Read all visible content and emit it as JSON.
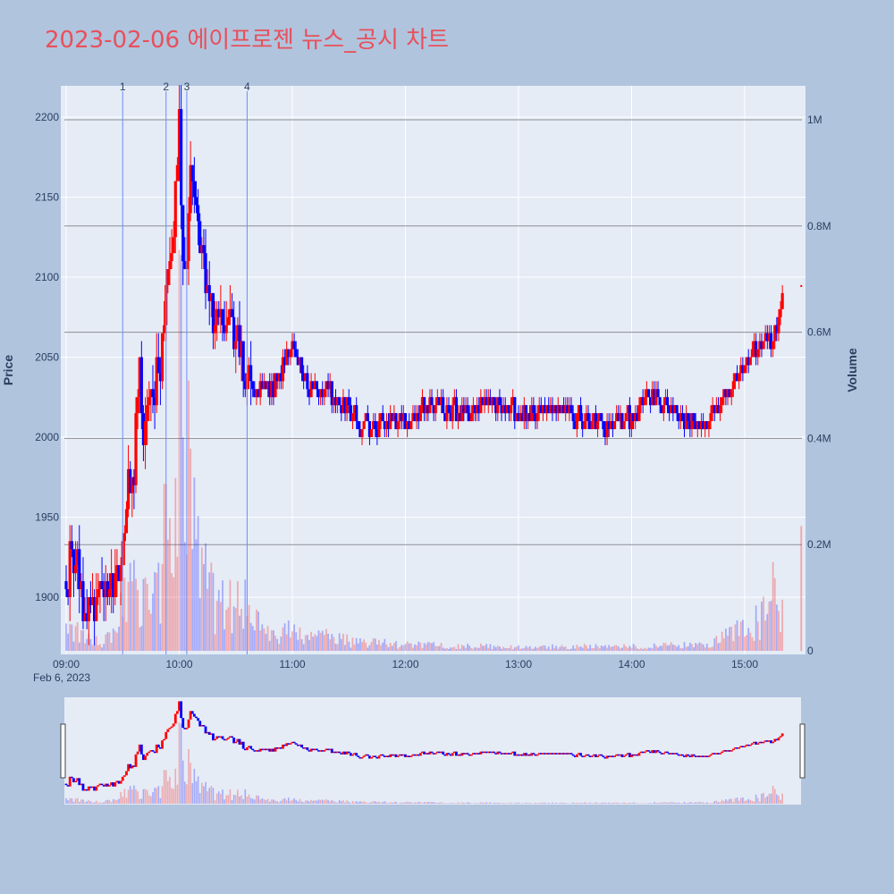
{
  "title": "2023-02-06 에이프로젠 뉴스_공시 차트",
  "chart_data": {
    "type": "candlestick",
    "ylabel": "Price",
    "y2label": "Volume",
    "xlabel": "",
    "date_label": "Feb 6, 2023",
    "x_ticks": [
      "09:00",
      "10:00",
      "11:00",
      "12:00",
      "13:00",
      "14:00",
      "15:00"
    ],
    "y_ticks": [
      1900,
      1950,
      2000,
      2050,
      2100,
      2150,
      2200
    ],
    "y2_ticks": [
      "0",
      "0.2M",
      "0.4M",
      "0.6M",
      "0.8M",
      "1M"
    ],
    "price_range": [
      1866,
      2220
    ],
    "volume_range": [
      0,
      1060000
    ],
    "time_range": [
      "09:00",
      "15:30"
    ],
    "up_color": "#ff0000",
    "down_color": "#0000ff",
    "news_markers": [
      {
        "label": "1",
        "time": "09:30"
      },
      {
        "label": "2",
        "time": "09:53"
      },
      {
        "label": "3",
        "time": "10:04"
      },
      {
        "label": "4",
        "time": "10:36"
      }
    ],
    "close_path": [
      [
        "09:00",
        1910
      ],
      [
        "09:04",
        1930
      ],
      [
        "09:08",
        1905
      ],
      [
        "09:10",
        1888
      ],
      [
        "09:15",
        1897
      ],
      [
        "09:20",
        1902
      ],
      [
        "09:25",
        1906
      ],
      [
        "09:30",
        1930
      ],
      [
        "09:33",
        1965
      ],
      [
        "09:36",
        1985
      ],
      [
        "09:39",
        2045
      ],
      [
        "09:41",
        2000
      ],
      [
        "09:44",
        2015
      ],
      [
        "09:47",
        2035
      ],
      [
        "09:50",
        2050
      ],
      [
        "09:53",
        2090
      ],
      [
        "09:56",
        2120
      ],
      [
        "09:58",
        2150
      ],
      [
        "10:00",
        2190
      ],
      [
        "10:02",
        2110
      ],
      [
        "10:04",
        2100
      ],
      [
        "10:06",
        2160
      ],
      [
        "10:08",
        2140
      ],
      [
        "10:11",
        2120
      ],
      [
        "10:14",
        2090
      ],
      [
        "10:17",
        2070
      ],
      [
        "10:20",
        2075
      ],
      [
        "10:24",
        2065
      ],
      [
        "10:28",
        2070
      ],
      [
        "10:32",
        2055
      ],
      [
        "10:36",
        2040
      ],
      [
        "10:40",
        2030
      ],
      [
        "10:45",
        2032
      ],
      [
        "10:50",
        2030
      ],
      [
        "10:55",
        2045
      ],
      [
        "11:00",
        2055
      ],
      [
        "11:05",
        2040
      ],
      [
        "11:10",
        2030
      ],
      [
        "11:20",
        2025
      ],
      [
        "11:30",
        2018
      ],
      [
        "11:40",
        2005
      ],
      [
        "11:50",
        2012
      ],
      [
        "12:00",
        2010
      ],
      [
        "12:15",
        2022
      ],
      [
        "12:30",
        2015
      ],
      [
        "12:45",
        2022
      ],
      [
        "13:00",
        2012
      ],
      [
        "13:15",
        2018
      ],
      [
        "13:30",
        2015
      ],
      [
        "13:45",
        2008
      ],
      [
        "14:00",
        2012
      ],
      [
        "14:10",
        2028
      ],
      [
        "14:20",
        2018
      ],
      [
        "14:30",
        2010
      ],
      [
        "14:40",
        2008
      ],
      [
        "14:50",
        2025
      ],
      [
        "15:00",
        2045
      ],
      [
        "15:05",
        2052
      ],
      [
        "15:10",
        2058
      ],
      [
        "15:15",
        2060
      ],
      [
        "15:18",
        2080
      ],
      [
        "15:20",
        2090
      ]
    ],
    "volume_profile": [
      [
        "09:00",
        60000
      ],
      [
        "09:10",
        25000
      ],
      [
        "09:20",
        15000
      ],
      [
        "09:30",
        90000
      ],
      [
        "09:35",
        150000
      ],
      [
        "09:40",
        110000
      ],
      [
        "09:45",
        80000
      ],
      [
        "09:50",
        160000
      ],
      [
        "09:55",
        340000
      ],
      [
        "10:00",
        600000
      ],
      [
        "10:05",
        360000
      ],
      [
        "10:10",
        180000
      ],
      [
        "10:15",
        140000
      ],
      [
        "10:20",
        90000
      ],
      [
        "10:30",
        90000
      ],
      [
        "10:36",
        100000
      ],
      [
        "10:45",
        30000
      ],
      [
        "11:00",
        40000
      ],
      [
        "11:30",
        20000
      ],
      [
        "12:00",
        12000
      ],
      [
        "13:00",
        8000
      ],
      [
        "14:00",
        10000
      ],
      [
        "14:40",
        12000
      ],
      [
        "14:50",
        30000
      ],
      [
        "15:00",
        50000
      ],
      [
        "15:10",
        70000
      ],
      [
        "15:15",
        120000
      ],
      [
        "15:20",
        90000
      ]
    ]
  }
}
